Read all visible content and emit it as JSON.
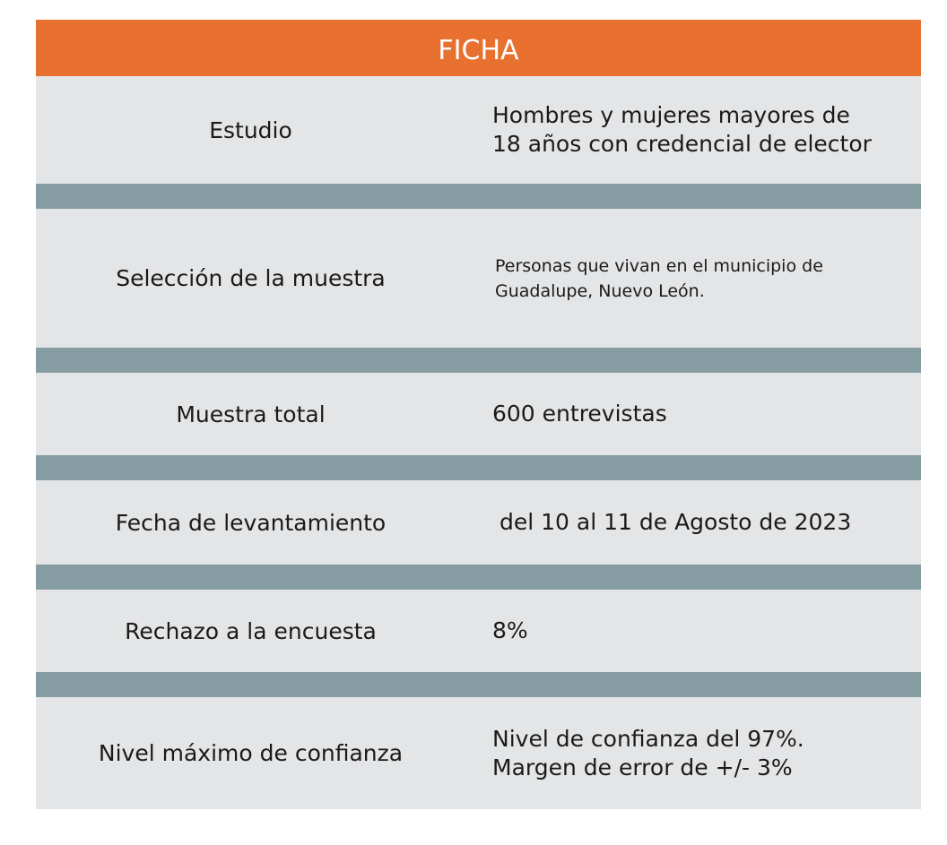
{
  "title": "FICHA",
  "rows": [
    {
      "label": "Estudio",
      "value": "Hombres y mujeres mayores de 18 años con credencial de elector"
    },
    {
      "label": "Selección de la muestra",
      "value": "Personas que vivan en el municipio de Guadalupe, Nuevo León."
    },
    {
      "label": "Muestra total",
      "value": "600 entrevistas"
    },
    {
      "label": "Fecha de levantamiento",
      "value": "del 10 al 11 de Agosto de 2023"
    },
    {
      "label": "Rechazo a la encuesta",
      "value": "8%"
    },
    {
      "label": "Nivel máximo de confianza",
      "value": "Nivel de confianza del 97%. Margen de error de +/- 3%"
    }
  ],
  "colors": {
    "header": "#e8712f",
    "row": "#e4e5e7",
    "separator": "#869ca3"
  }
}
